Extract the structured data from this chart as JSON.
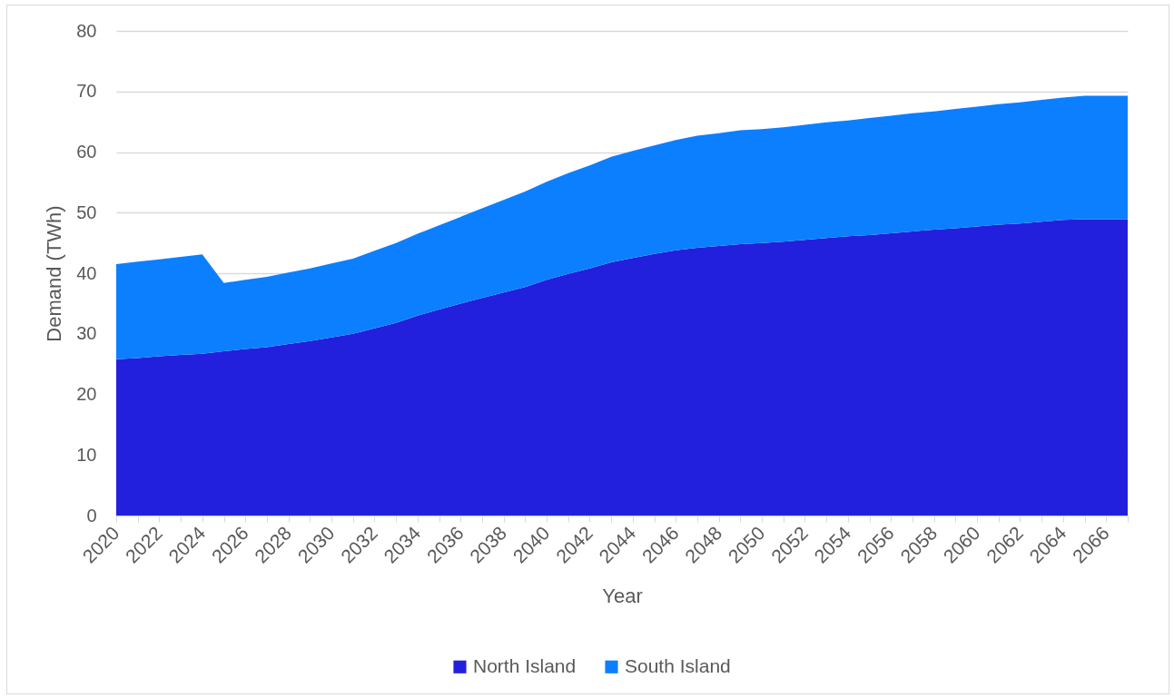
{
  "chart_data": {
    "type": "area",
    "xlabel": "Year",
    "ylabel": "Demand (TWh)",
    "categories": [
      "2020",
      null,
      "2022",
      null,
      "2024",
      null,
      "2026",
      null,
      "2028",
      null,
      "2030",
      null,
      "2032",
      null,
      "2034",
      null,
      "2036",
      null,
      "2038",
      null,
      "2040",
      null,
      "2042",
      null,
      "2044",
      null,
      "2046",
      null,
      "2048",
      null,
      "2050",
      null,
      "2052",
      null,
      "2054",
      null,
      "2056",
      null,
      "2058",
      null,
      "2060",
      null,
      "2062",
      null,
      "2064",
      null,
      "2066",
      null
    ],
    "series": [
      {
        "name": "North Island",
        "color": "#2320dd",
        "values": [
          25.8,
          26.0,
          26.3,
          26.5,
          26.7,
          27.1,
          27.5,
          27.8,
          28.3,
          28.8,
          29.4,
          30.0,
          30.9,
          31.8,
          33.0,
          34.0,
          35.0,
          35.9,
          36.8,
          37.7,
          38.9,
          39.9,
          40.8,
          41.8,
          42.5,
          43.2,
          43.8,
          44.2,
          44.5,
          44.8,
          45.0,
          45.2,
          45.5,
          45.8,
          46.1,
          46.3,
          46.6,
          46.9,
          47.2,
          47.4,
          47.7,
          48.0,
          48.2,
          48.5,
          48.8,
          48.9,
          48.9,
          48.9
        ]
      },
      {
        "name": "South Island",
        "color": "#0c7ffe",
        "values": [
          15.7,
          15.9,
          16.0,
          16.2,
          16.4,
          11.3,
          11.4,
          11.6,
          11.8,
          12.0,
          12.2,
          12.4,
          12.8,
          13.2,
          13.5,
          13.9,
          14.3,
          14.8,
          15.3,
          15.8,
          16.2,
          16.6,
          17.0,
          17.4,
          17.7,
          17.9,
          18.2,
          18.5,
          18.6,
          18.8,
          18.8,
          18.9,
          19.0,
          19.1,
          19.1,
          19.3,
          19.4,
          19.5,
          19.5,
          19.7,
          19.8,
          19.9,
          20.0,
          20.1,
          20.2,
          20.4,
          20.4,
          20.4
        ]
      }
    ],
    "stacked": true,
    "ylim": [
      0,
      80
    ],
    "yticks": [
      0,
      10,
      20,
      30,
      40,
      50,
      60,
      70,
      80
    ],
    "grid": "y",
    "legend": "bottom"
  }
}
